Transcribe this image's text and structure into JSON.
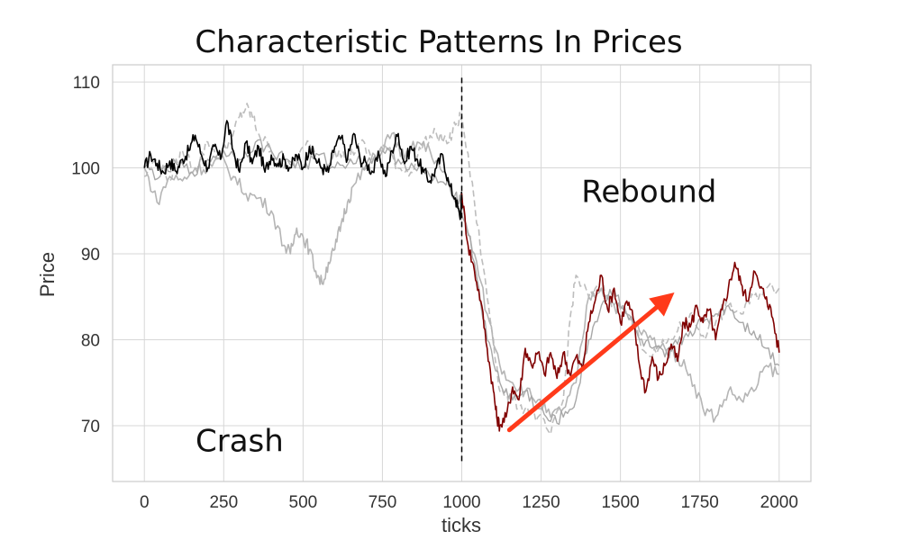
{
  "chart_data": {
    "type": "line",
    "title": "Characteristic Patterns In Prices",
    "xlabel": "ticks",
    "ylabel": "Price",
    "xlim": [
      -100,
      2100
    ],
    "ylim": [
      63.5,
      112
    ],
    "xticks": [
      0,
      250,
      500,
      750,
      1000,
      1250,
      1500,
      1750,
      2000
    ],
    "yticks": [
      70,
      80,
      90,
      100,
      110
    ],
    "grid": true,
    "legend": "none",
    "series": [
      {
        "style": "solid",
        "color": "#000000",
        "width": 1.6,
        "x": [
          0,
          20,
          40,
          60,
          80,
          100,
          120,
          140,
          160,
          180,
          200,
          220,
          240,
          260,
          280,
          300,
          320,
          340,
          360,
          380,
          400,
          420,
          440,
          460,
          480,
          500,
          520,
          540,
          560,
          580,
          600,
          620,
          640,
          660,
          680,
          700,
          720,
          740,
          760,
          780,
          800,
          820,
          840,
          860,
          880,
          900,
          920,
          940,
          960,
          980,
          995,
          1000
        ],
        "y": [
          100,
          101.5,
          100.5,
          99.5,
          100.8,
          99.6,
          101,
          102,
          103.8,
          101.5,
          100,
          102.5,
          101,
          105.5,
          102,
          99.5,
          103,
          100.5,
          102.5,
          99.5,
          101.5,
          100.5,
          101,
          100,
          101.5,
          100,
          102.5,
          101,
          100,
          99.5,
          102.5,
          103.5,
          101,
          104,
          101,
          100.5,
          99.5,
          101.5,
          99,
          102,
          104,
          100.5,
          102.5,
          101,
          99.5,
          98.5,
          100,
          101.5,
          98,
          96.5,
          94,
          97
        ]
      },
      {
        "style": "solid",
        "color": "#800000",
        "width": 1.6,
        "x": [
          1000,
          1020,
          1040,
          1060,
          1080,
          1100,
          1110,
          1120,
          1140,
          1160,
          1180,
          1200,
          1220,
          1240,
          1260,
          1280,
          1300,
          1320,
          1340,
          1360,
          1380,
          1400,
          1420,
          1440,
          1460,
          1480,
          1500,
          1520,
          1540,
          1560,
          1580,
          1600,
          1620,
          1640,
          1660,
          1680,
          1700,
          1720,
          1740,
          1760,
          1780,
          1800,
          1820,
          1840,
          1860,
          1880,
          1900,
          1920,
          1940,
          1960,
          1980,
          2000
        ],
        "y": [
          97,
          91,
          88,
          84.5,
          79,
          74,
          71,
          70,
          71,
          74.5,
          73,
          79,
          77,
          78.5,
          76,
          78.5,
          75.5,
          78.5,
          76,
          78,
          76.5,
          82,
          84.5,
          87.5,
          83.5,
          86,
          82,
          84.5,
          82.5,
          77,
          74,
          78,
          75.5,
          77,
          79.5,
          77.5,
          82,
          81.5,
          84,
          82,
          83.5,
          80,
          83.5,
          86,
          89,
          86.5,
          84.5,
          88,
          86,
          85,
          82.5,
          78.5
        ]
      },
      {
        "style": "dashed",
        "color": "#bdbdbd",
        "width": 1.6,
        "x": [
          0,
          40,
          80,
          120,
          160,
          200,
          240,
          280,
          300,
          320,
          340,
          360,
          400,
          440,
          480,
          520,
          560,
          600,
          640,
          680,
          720,
          760,
          800,
          840,
          880,
          920,
          960,
          980,
          1000,
          1040,
          1080,
          1100,
          1120,
          1160,
          1200,
          1240,
          1280,
          1320,
          1340,
          1360,
          1400,
          1440,
          1480,
          1520,
          1560,
          1600,
          1640,
          1680,
          1720,
          1760,
          1800,
          1840,
          1880,
          1920,
          1960,
          2000
        ],
        "y": [
          99,
          101,
          98.5,
          102,
          100,
          103,
          101,
          104,
          106,
          107,
          106,
          104,
          102,
          100,
          101,
          103,
          100,
          102,
          101,
          103,
          101,
          102.5,
          100,
          99.5,
          103,
          104,
          103,
          105,
          106,
          96,
          85,
          80,
          74,
          73,
          72,
          71,
          69,
          73,
          82,
          87.5,
          85,
          86,
          84,
          83,
          80,
          78,
          79.5,
          81,
          83,
          80.5,
          82,
          84,
          83,
          85,
          86,
          86
        ]
      },
      {
        "style": "solid",
        "color": "#b5b5b5",
        "width": 1.6,
        "x": [
          0,
          40,
          80,
          120,
          160,
          200,
          240,
          280,
          320,
          360,
          400,
          440,
          460,
          480,
          500,
          520,
          540,
          560,
          580,
          600,
          620,
          640,
          660,
          700,
          740,
          780,
          820,
          860,
          900,
          940,
          980,
          1000,
          1040,
          1080,
          1120,
          1160,
          1200,
          1240,
          1280,
          1320,
          1360,
          1400,
          1440,
          1480,
          1520,
          1560,
          1600,
          1640,
          1680,
          1720,
          1760,
          1800,
          1840,
          1880,
          1920,
          1960,
          2000
        ],
        "y": [
          100,
          96,
          99,
          98.5,
          100,
          100,
          101,
          99,
          97,
          96.5,
          95,
          91,
          90,
          93,
          92,
          90.5,
          88,
          86.5,
          89,
          90.5,
          93.5,
          96,
          98,
          100,
          102,
          104,
          101,
          103,
          102,
          99.5,
          96,
          94.5,
          90,
          83,
          77,
          75,
          74,
          73,
          71,
          72,
          75,
          85,
          86,
          84,
          83,
          81,
          80,
          79,
          78,
          76,
          72,
          71,
          74,
          73,
          74,
          77,
          76
        ]
      },
      {
        "style": "solid",
        "color": "#a8a8a8",
        "width": 1.4,
        "x": [
          0,
          50,
          100,
          150,
          200,
          250,
          300,
          350,
          400,
          450,
          500,
          550,
          600,
          650,
          700,
          750,
          800,
          850,
          900,
          950,
          980,
          1000,
          1040,
          1080,
          1120,
          1160,
          1200,
          1240,
          1280,
          1320,
          1360,
          1400,
          1440,
          1480,
          1520,
          1560,
          1600,
          1640,
          1680,
          1720,
          1760,
          1800,
          1840,
          1880,
          1920,
          1960,
          2000
        ],
        "y": [
          100,
          99,
          100.5,
          99.5,
          101,
          102,
          101,
          103,
          102,
          101,
          100,
          101.5,
          100,
          101,
          100.5,
          102,
          101,
          100,
          99,
          98,
          97,
          96,
          89,
          80,
          75,
          73,
          74,
          72,
          70.5,
          71,
          73,
          80,
          84,
          86,
          83,
          80,
          79,
          78,
          79.5,
          81,
          82,
          83,
          84,
          82,
          81,
          79,
          77
        ]
      }
    ],
    "annotations": [
      {
        "text": "Crash",
        "x": 300,
        "y": 67
      },
      {
        "text": "Rebound",
        "x": 1590,
        "y": 96
      }
    ],
    "vline": {
      "x": 1000,
      "y_from": 65.5,
      "y_to": 110.5,
      "style": "dashed",
      "color": "#000000"
    },
    "arrow": {
      "from": [
        1150,
        69.5
      ],
      "to": [
        1670,
        85.5
      ],
      "color": "#ff3a1a"
    }
  }
}
